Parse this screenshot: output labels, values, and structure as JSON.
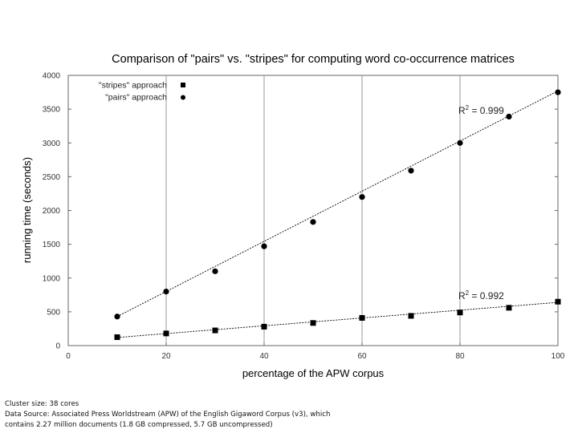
{
  "chart_data": {
    "type": "scatter",
    "title": "Comparison of \"pairs\" vs. \"stripes\" for computing word co-occurrence matrices",
    "xlabel": "percentage of the APW corpus",
    "ylabel": "running time (seconds)",
    "xlim": [
      0,
      100
    ],
    "ylim": [
      0,
      4000
    ],
    "xticks": [
      0,
      20,
      40,
      60,
      80,
      100
    ],
    "yticks": [
      0,
      500,
      1000,
      1500,
      2000,
      2500,
      3000,
      3500,
      4000
    ],
    "grid": "vertical lines at x ticks",
    "legend_position": "top-left",
    "series": [
      {
        "name": "\"stripes\" approach",
        "marker": "square",
        "color": "#000000",
        "x": [
          10,
          20,
          30,
          40,
          50,
          60,
          70,
          80,
          90,
          100
        ],
        "y": [
          125,
          180,
          225,
          280,
          335,
          410,
          440,
          490,
          560,
          650
        ],
        "fit": [
          [
            10,
            120
          ],
          [
            100,
            640
          ]
        ],
        "fit_label": "R2 = 0.992"
      },
      {
        "name": "\"pairs\" approach",
        "marker": "circle",
        "color": "#000000",
        "x": [
          10,
          20,
          30,
          40,
          50,
          60,
          70,
          80,
          90,
          100
        ],
        "y": [
          430,
          800,
          1100,
          1470,
          1830,
          2200,
          2590,
          3000,
          3390,
          3750
        ],
        "fit": [
          [
            10,
            430
          ],
          [
            100,
            3770
          ]
        ],
        "fit_label": "R2 = 0.999"
      }
    ]
  },
  "footnote": {
    "line1": "Cluster size: 38 cores",
    "line2": "Data Source: Associated Press Worldstream (APW) of the English Gigaword Corpus (v3), which",
    "line3": "contains 2.27 million documents (1.8 GB compressed, 5.7 GB uncompressed)"
  }
}
